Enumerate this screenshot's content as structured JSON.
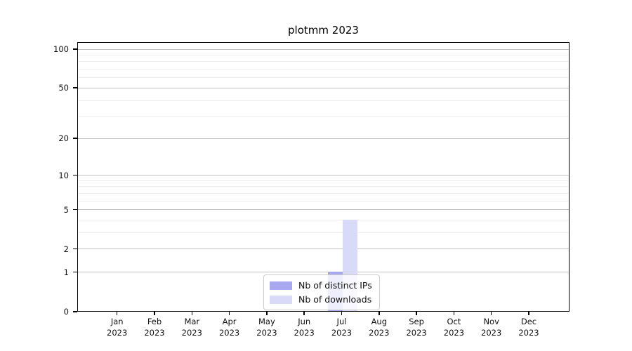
{
  "title": "plotmm 2023",
  "chart_data": {
    "type": "bar",
    "title": "plotmm 2023",
    "categories": [
      "Jan",
      "Feb",
      "Mar",
      "Apr",
      "May",
      "Jun",
      "Jul",
      "Aug",
      "Sep",
      "Oct",
      "Nov",
      "Dec"
    ],
    "year_label": "2023",
    "series": [
      {
        "name": "Nb of distinct IPs",
        "color": "#a8a8f0",
        "values": [
          0,
          0,
          0,
          0,
          0,
          0,
          1,
          0,
          0,
          0,
          0,
          0
        ]
      },
      {
        "name": "Nb of downloads",
        "color": "#d9d9f8",
        "values": [
          0,
          0,
          0,
          0,
          0,
          0,
          4,
          0,
          0,
          0,
          0,
          0
        ]
      }
    ],
    "xlabel": "",
    "ylabel": "",
    "y_major_ticks": [
      0,
      1,
      2,
      5,
      10,
      20,
      50,
      100
    ],
    "y_minor_ticks": [
      3,
      4,
      6,
      7,
      8,
      9,
      30,
      40,
      60,
      70,
      80,
      90
    ],
    "ylim": [
      0,
      100
    ],
    "scale": "log1p",
    "grid": true,
    "legend_position": "lower-center-inside",
    "colors": {
      "major_grid": "#c2c2c2",
      "minor_grid": "#ededed",
      "spine": "#000000",
      "text": "#111111"
    }
  },
  "legend": {
    "items": [
      {
        "label": "Nb of distinct IPs",
        "color": "#a8a8f0"
      },
      {
        "label": "Nb of downloads",
        "color": "#d9d9f8"
      }
    ]
  }
}
